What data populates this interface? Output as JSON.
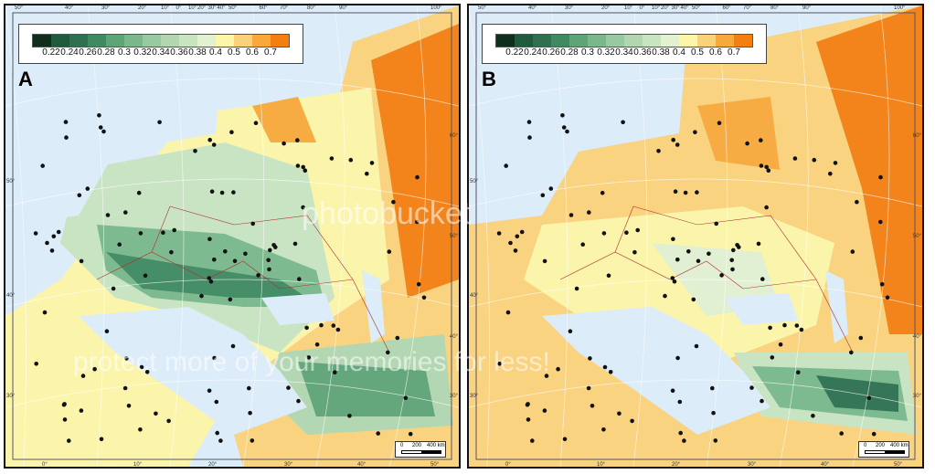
{
  "legend": {
    "labels": [
      "0.22",
      "0.24",
      "0.26",
      "0.28",
      "0.3",
      "0.32",
      "0.34",
      "0.36",
      "0.38",
      "0.4",
      "0.5",
      "0.6",
      "0.7"
    ],
    "colors": [
      "#0f2e1c",
      "#1f5a3c",
      "#2e7050",
      "#3f8a60",
      "#5ea476",
      "#7ab88a",
      "#98c9a0",
      "#b2d6b0",
      "#c8e4c0",
      "#e2f1d0",
      "#fdf6a8",
      "#fbd27a",
      "#f8a93a",
      "#f47f10"
    ]
  },
  "panels": [
    {
      "letter": "A",
      "scale": {
        "zero": "0",
        "mid": "200",
        "end": "400 km"
      }
    },
    {
      "letter": "B",
      "scale": {
        "zero": "0",
        "mid": "200",
        "end": "400 km"
      }
    }
  ],
  "ticks": {
    "top": [
      "50°",
      "40°",
      "30°",
      "20°",
      "10°",
      "0°",
      "10°",
      "20°",
      "30°",
      "40°",
      "50°",
      "60°",
      "70°",
      "80°",
      "90°",
      "100°"
    ],
    "bottom": [
      "0°",
      "10°",
      "20°",
      "30°",
      "40°",
      "50°"
    ],
    "left": [
      "50°",
      "40°",
      "30°"
    ],
    "right": [
      "60°",
      "50°",
      "40°",
      "30°"
    ]
  },
  "colors": {
    "sea": "#dcecf8",
    "border_lines": "#b03030",
    "rivers": "#3050a0",
    "dots": "#111111"
  },
  "watermark": {
    "logo": "photobucket",
    "slogan": "protect more of your memories for less!"
  }
}
